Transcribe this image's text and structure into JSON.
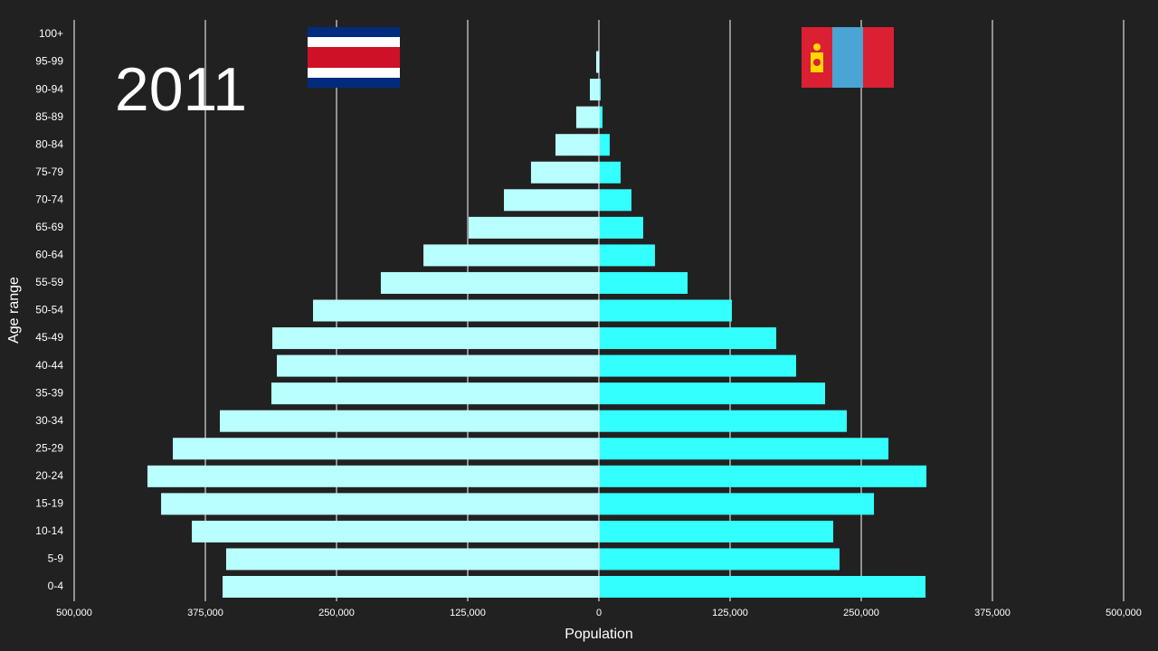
{
  "chart_data": {
    "type": "pyramid",
    "year_label": "2011",
    "ylabel": "Age range",
    "xlabel": "Population",
    "categories": [
      "100+",
      "95-99",
      "90-94",
      "85-89",
      "80-84",
      "75-79",
      "70-74",
      "65-69",
      "60-64",
      "55-59",
      "50-54",
      "45-49",
      "40-44",
      "35-39",
      "30-34",
      "25-29",
      "20-24",
      "15-19",
      "10-14",
      "5-9",
      "0-4"
    ],
    "series": [
      {
        "color": "#b9ffff",
        "values": [
          0,
          2600,
          8600,
          21600,
          41400,
          64700,
          90500,
          124100,
          167200,
          207800,
          272400,
          311200,
          306900,
          312100,
          361200,
          406000,
          430200,
          417200,
          387900,
          355200,
          358600
        ]
      },
      {
        "color": "#33ffff",
        "values": [
          300,
          500,
          1700,
          3400,
          10300,
          20700,
          31000,
          42200,
          53400,
          84500,
          126700,
          169000,
          187900,
          215500,
          236200,
          275900,
          312100,
          262100,
          223300,
          229300,
          311200
        ]
      }
    ],
    "xlim": [
      -500000,
      500000
    ],
    "xticks": [
      {
        "value": -500000,
        "label": "500,000"
      },
      {
        "value": -375000,
        "label": "375,000"
      },
      {
        "value": -250000,
        "label": "250,000"
      },
      {
        "value": -125000,
        "label": "125,000"
      },
      0,
      {
        "value": 125000,
        "label": "125,000"
      },
      {
        "value": 250000,
        "label": "250,000"
      },
      {
        "value": 375000,
        "label": "375,000"
      },
      {
        "value": 500000,
        "label": "500,000"
      }
    ],
    "grid": true
  }
}
